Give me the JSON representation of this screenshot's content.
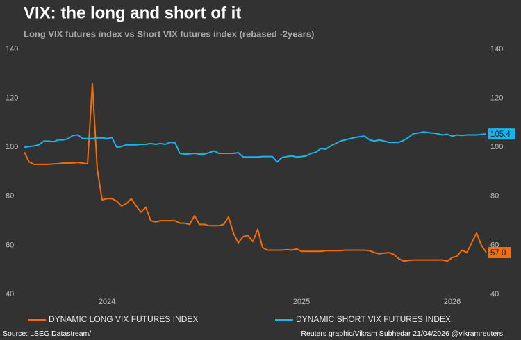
{
  "chart_data": {
    "type": "line",
    "title": "VIX: the long and short of it",
    "subtitle": "Long VIX futures index vs Short VIX futures index (rebased -2years)",
    "source": "Source: LSEG Datastream/",
    "credit": "Reuters graphic/Vikram Subhedar 21/04/2026  @vikramreuters",
    "categories": [
      null,
      null,
      null,
      null,
      null,
      null,
      null,
      null,
      null,
      null,
      null,
      null,
      null,
      null,
      null,
      null,
      null,
      "2024",
      null,
      null,
      null,
      null,
      null,
      null,
      null,
      null,
      null,
      null,
      null,
      null,
      null,
      null,
      null,
      null,
      null,
      null,
      null,
      null,
      null,
      null,
      null,
      null,
      null,
      null,
      null,
      null,
      null,
      null,
      null,
      null,
      null,
      null,
      null,
      null,
      null,
      null,
      null,
      "2025",
      null,
      null,
      null,
      null,
      null,
      null,
      null,
      null,
      null,
      null,
      null,
      null,
      null,
      null,
      null,
      null,
      null,
      null,
      null,
      null,
      null,
      null,
      null,
      null,
      null,
      null,
      null,
      null,
      null,
      null,
      "2026",
      null,
      null,
      null,
      null,
      null,
      null,
      null
    ],
    "series": [
      {
        "name": "DYNAMIC LONG VIX FUTURES INDEX",
        "color": "#f26d0c",
        "end_label": "57.0",
        "values": [
          98,
          94,
          93,
          93,
          93,
          93,
          93.2,
          93.3,
          93.5,
          93.5,
          93.6,
          93.8,
          93.5,
          93.2,
          126,
          91,
          78.5,
          79,
          79,
          78,
          76,
          77,
          79,
          76,
          73.5,
          75.5,
          70,
          69.5,
          70,
          70,
          70,
          70,
          69,
          69,
          68.5,
          72,
          68.5,
          68.5,
          68,
          68,
          68,
          68.5,
          71.5,
          65,
          61,
          63.5,
          64,
          61.5,
          66.5,
          59,
          58,
          58,
          58,
          58,
          58.2,
          58,
          58.5,
          57.5,
          57.5,
          57.5,
          57.5,
          57.5,
          57.8,
          57.8,
          57.8,
          57.8,
          58,
          58,
          58,
          58,
          58,
          57.8,
          57,
          56.5,
          56.8,
          57,
          56.2,
          54.5,
          53.5,
          53.8,
          54,
          54,
          54,
          54,
          54,
          54,
          54,
          53.5,
          55,
          55.5,
          58,
          57,
          61,
          65,
          60,
          57
        ]
      },
      {
        "name": "DYNAMIC SHORT VIX FUTURES INDEX",
        "color": "#19b5e8",
        "axis": "y2",
        "end_label": "105.4",
        "values": [
          100,
          100.3,
          100.5,
          101,
          102.5,
          102.5,
          102.2,
          103,
          103,
          103.5,
          104.8,
          105,
          103.5,
          103.5,
          103.5,
          103.8,
          103.8,
          103.5,
          104,
          100,
          100.3,
          101,
          101,
          101,
          101.2,
          101.2,
          101.5,
          101.2,
          101.5,
          101.2,
          102,
          101.8,
          97.5,
          97.2,
          97.3,
          97.5,
          97.2,
          97.2,
          97.8,
          98.5,
          97.5,
          97.5,
          97.5,
          97.5,
          97.8,
          96,
          96,
          96,
          96,
          96.2,
          96.2,
          96.2,
          94,
          95.8,
          96.2,
          96.5,
          96,
          96.2,
          96.5,
          97.5,
          98,
          99.5,
          99.2,
          100.5,
          101.5,
          102.5,
          103,
          103.5,
          104,
          104.3,
          104.5,
          103,
          102.5,
          103,
          102.5,
          102,
          102,
          102,
          102.8,
          104,
          105.5,
          105.8,
          106.2,
          106,
          105.8,
          105.5,
          105,
          105.3,
          104.5,
          105,
          104.8,
          105,
          105,
          105,
          105.2,
          105.4
        ]
      }
    ],
    "ylim": [
      40,
      140
    ],
    "yticks": [
      40,
      60,
      80,
      100,
      120,
      140
    ],
    "y2lim": [
      40,
      140
    ],
    "y2ticks": [
      40,
      60,
      80,
      100,
      120,
      140
    ],
    "grid": false,
    "legend": "bottom"
  }
}
